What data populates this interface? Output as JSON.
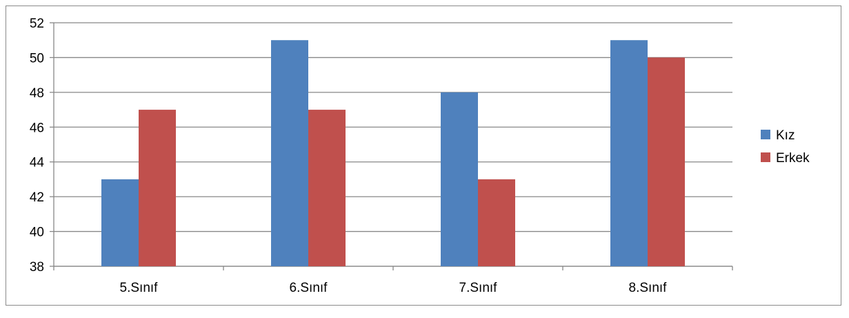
{
  "chart_data": {
    "type": "bar",
    "categories": [
      "5.Sınıf",
      "6.Sınıf",
      "7.Sınıf",
      "8.Sınıf"
    ],
    "series": [
      {
        "name": "Kız",
        "values": [
          43,
          51,
          48,
          51
        ],
        "color": "#4f81bd"
      },
      {
        "name": "Erkek",
        "values": [
          47,
          47,
          43,
          50
        ],
        "color": "#c0504d"
      }
    ],
    "ylim": [
      38,
      52
    ],
    "yticks": [
      38,
      40,
      42,
      44,
      46,
      48,
      50,
      52
    ],
    "grid": true,
    "legend_position": "right",
    "title": "",
    "xlabel": "",
    "ylabel": ""
  }
}
